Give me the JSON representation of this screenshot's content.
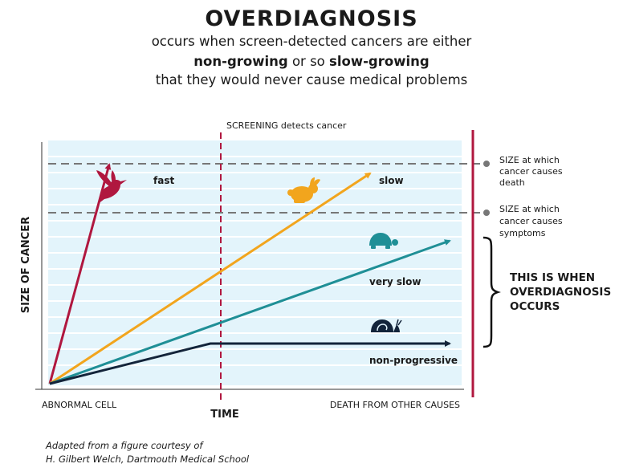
{
  "header": {
    "title": "OVERDIAGNOSIS",
    "subtitle_line1": "occurs when screen-detected cancers are either",
    "subtitle_line2_part1": "non-growing",
    "subtitle_line2_part2": " or so ",
    "subtitle_line2_part3": "slow-growing",
    "subtitle_line3": "that they would never cause medical problems"
  },
  "chart": {
    "screening_label": "SCREENING detects cancer",
    "y_axis_label": "SIZE OF CANCER",
    "x_axis_label": "TIME",
    "x_start_label": "ABNORMAL CELL",
    "x_end_label": "DEATH FROM OTHER CAUSES",
    "threshold_death": [
      "SIZE at which",
      "cancer causes",
      "death"
    ],
    "threshold_symptoms": [
      "SIZE at which",
      "cancer causes",
      "symptoms"
    ],
    "overdiagnosis_note": [
      "THIS IS WHEN",
      "OVERDIAGNOSIS",
      "OCCURS"
    ],
    "lines": [
      {
        "key": "fast",
        "label": "fast",
        "color": "#b0173f",
        "icon": "hummingbird-icon"
      },
      {
        "key": "slow",
        "label": "slow",
        "color": "#f2a51d",
        "icon": "rabbit-icon"
      },
      {
        "key": "very_slow",
        "label": "very slow",
        "color": "#1f8f96",
        "icon": "turtle-icon"
      },
      {
        "key": "non_progressive",
        "label": "non-progressive",
        "color": "#13243a",
        "icon": "snail-icon"
      }
    ],
    "colors": {
      "background": "#e3f4fb",
      "grid": "#ffffff",
      "death_bar": "#b0173f",
      "threshold": "#777777"
    }
  },
  "credit": {
    "line1": "Adapted from a figure courtesy of",
    "line2": "H. Gilbert Welch, Dartmouth Medical School"
  }
}
